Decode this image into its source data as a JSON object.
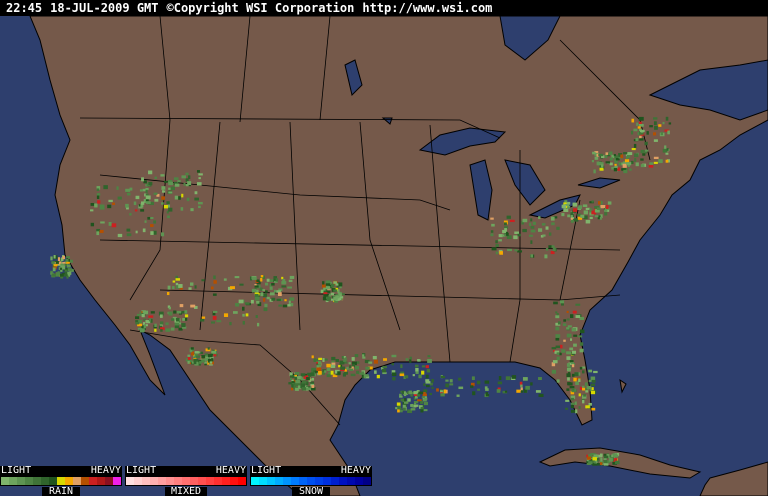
{
  "header": {
    "time": "22:45",
    "date": "18-JUL-2009 GMT",
    "copyright": "©Copyright WSI Corporation",
    "url": "http://www.wsi.com"
  },
  "map": {
    "ocean_color": "#2e3f6e",
    "land_color": "#75594a",
    "border_color": "#000000"
  },
  "legend": [
    {
      "name": "RAIN",
      "light": "LIGHT",
      "heavy": "HEAVY",
      "colors": [
        "#80b46c",
        "#6ea45e",
        "#5e9452",
        "#4e8444",
        "#407438",
        "#30642c",
        "#20541e",
        "#d8d800",
        "#f4a800",
        "#e0a064",
        "#b45000",
        "#cc2020",
        "#b01818",
        "#8c1020",
        "#f020e8"
      ]
    },
    {
      "name": "MIXED",
      "light": "LIGHT",
      "heavy": "HEAVY",
      "colors": [
        "#ffe0e0",
        "#ffd0d0",
        "#ffc0c0",
        "#ffb0b0",
        "#ffa0a0",
        "#ff9090",
        "#ff8080",
        "#ff7070",
        "#ff6060",
        "#ff5050",
        "#ff4040",
        "#ff3030",
        "#ff2020",
        "#ff1010",
        "#ff0000"
      ]
    },
    {
      "name": "SNOW",
      "light": "LIGHT",
      "heavy": "HEAVY",
      "colors": [
        "#00f4ff",
        "#00dcff",
        "#00c4ff",
        "#00acff",
        "#0094ff",
        "#007cff",
        "#0064f8",
        "#0050f0",
        "#0040e8",
        "#0030e0",
        "#0020d0",
        "#0010c0",
        "#0008b0",
        "#0000a0",
        "#000088"
      ]
    }
  ]
}
